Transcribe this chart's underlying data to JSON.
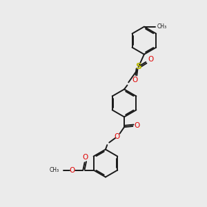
{
  "bg_color": "#ebebeb",
  "bond_color": "#1a1a1a",
  "bond_width": 1.4,
  "dbo": 0.055,
  "S_color": "#b8b800",
  "O_color": "#e00000",
  "C_color": "#1a1a1a",
  "figsize": [
    3.0,
    3.0
  ],
  "dpi": 100,
  "xlim": [
    0,
    10
  ],
  "ylim": [
    0,
    10
  ],
  "ring_r": 0.68
}
